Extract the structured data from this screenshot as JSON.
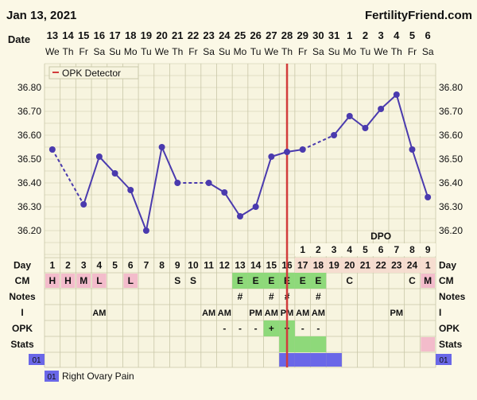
{
  "header": {
    "date": "Jan 13, 2021",
    "brand": "FertilityFriend.com"
  },
  "detector_label": "OPK Detector",
  "row_labels": {
    "date": "Date",
    "day": "Day",
    "cm": "CM",
    "notes": "Notes",
    "i": "I",
    "opk": "OPK",
    "stats": "Stats"
  },
  "dpo_label": "DPO",
  "legend": {
    "code": "01",
    "label": "Right Ovary Pain"
  },
  "colors": {
    "background": "#fbf8e6",
    "grid": "#c9c7a8",
    "line": "#4a3aae",
    "ovulation_line": "#d23c3c",
    "cm_pink": "#f3bccb",
    "cm_green": "#8ed97a",
    "opk_green": "#8ed97a",
    "pain_blue": "#6a67e8",
    "dpo_row": "#f6ddd0"
  },
  "days": [
    {
      "date": "13",
      "dow": "We",
      "cd": "1",
      "cm": "H",
      "cmc": "pink",
      "notes": "",
      "i": "",
      "opk": "",
      "stats": "",
      "pain": false
    },
    {
      "date": "14",
      "dow": "Th",
      "cd": "2",
      "cm": "H",
      "cmc": "pink",
      "notes": "",
      "i": "",
      "opk": "",
      "stats": "",
      "pain": false
    },
    {
      "date": "15",
      "dow": "Fr",
      "cd": "3",
      "cm": "M",
      "cmc": "pink",
      "notes": "",
      "i": "",
      "opk": "",
      "stats": "",
      "pain": false
    },
    {
      "date": "16",
      "dow": "Sa",
      "cd": "4",
      "cm": "L",
      "cmc": "pink",
      "notes": "",
      "i": "AM",
      "opk": "",
      "stats": "",
      "pain": false
    },
    {
      "date": "17",
      "dow": "Su",
      "cd": "5",
      "cm": "",
      "cmc": "",
      "notes": "",
      "i": "",
      "opk": "",
      "stats": "",
      "pain": false
    },
    {
      "date": "18",
      "dow": "Mo",
      "cd": "6",
      "cm": "L",
      "cmc": "pink",
      "notes": "",
      "i": "",
      "opk": "",
      "stats": "",
      "pain": false
    },
    {
      "date": "19",
      "dow": "Tu",
      "cd": "7",
      "cm": "",
      "cmc": "",
      "notes": "",
      "i": "",
      "opk": "",
      "stats": "",
      "pain": false
    },
    {
      "date": "20",
      "dow": "We",
      "cd": "8",
      "cm": "",
      "cmc": "",
      "notes": "",
      "i": "",
      "opk": "",
      "stats": "",
      "pain": false
    },
    {
      "date": "21",
      "dow": "Th",
      "cd": "9",
      "cm": "S",
      "cmc": "",
      "notes": "",
      "i": "",
      "opk": "",
      "stats": "",
      "pain": false
    },
    {
      "date": "22",
      "dow": "Fr",
      "cd": "10",
      "cm": "S",
      "cmc": "",
      "notes": "",
      "i": "",
      "opk": "",
      "stats": "",
      "pain": false
    },
    {
      "date": "23",
      "dow": "Sa",
      "cd": "11",
      "cm": "",
      "cmc": "",
      "notes": "",
      "i": "AM",
      "opk": "",
      "stats": "",
      "pain": false
    },
    {
      "date": "24",
      "dow": "Su",
      "cd": "12",
      "cm": "",
      "cmc": "",
      "notes": "",
      "i": "AM",
      "opk": "-",
      "stats": "",
      "pain": false
    },
    {
      "date": "25",
      "dow": "Mo",
      "cd": "13",
      "cm": "E",
      "cmc": "green",
      "notes": "#",
      "i": "",
      "opk": "-",
      "stats": "",
      "pain": false
    },
    {
      "date": "26",
      "dow": "Tu",
      "cd": "14",
      "cm": "E",
      "cmc": "green",
      "notes": "",
      "i": "PM",
      "opk": "-",
      "stats": "",
      "pain": false
    },
    {
      "date": "27",
      "dow": "We",
      "cd": "15",
      "cm": "E",
      "cmc": "green",
      "notes": "#",
      "i": "AM",
      "opk": "+",
      "stats": "",
      "pain": false
    },
    {
      "date": "28",
      "dow": "Th",
      "cd": "16",
      "cm": "E",
      "cmc": "green",
      "notes": "#",
      "i": "PM",
      "opk": "+",
      "stats": "green",
      "pain": true
    },
    {
      "date": "29",
      "dow": "Fr",
      "cd": "17",
      "cm": "E",
      "cmc": "green",
      "notes": "",
      "i": "AM",
      "opk": "-",
      "stats": "green",
      "pain": true
    },
    {
      "date": "30",
      "dow": "Sa",
      "cd": "18",
      "cm": "E",
      "cmc": "green",
      "notes": "#",
      "i": "AM",
      "opk": "-",
      "stats": "green",
      "pain": true
    },
    {
      "date": "31",
      "dow": "Su",
      "cd": "19",
      "cm": "",
      "cmc": "",
      "notes": "",
      "i": "",
      "opk": "",
      "stats": "",
      "pain": true
    },
    {
      "date": "1",
      "dow": "Mo",
      "cd": "20",
      "cm": "C",
      "cmc": "",
      "notes": "",
      "i": "",
      "opk": "",
      "stats": "",
      "pain": false
    },
    {
      "date": "2",
      "dow": "Tu",
      "cd": "21",
      "cm": "",
      "cmc": "",
      "notes": "",
      "i": "",
      "opk": "",
      "stats": "",
      "pain": false
    },
    {
      "date": "3",
      "dow": "We",
      "cd": "22",
      "cm": "",
      "cmc": "",
      "notes": "",
      "i": "",
      "opk": "",
      "stats": "",
      "pain": false
    },
    {
      "date": "4",
      "dow": "Th",
      "cd": "23",
      "cm": "",
      "cmc": "",
      "notes": "",
      "i": "PM",
      "opk": "",
      "stats": "",
      "pain": false
    },
    {
      "date": "5",
      "dow": "Fr",
      "cd": "24",
      "cm": "C",
      "cmc": "",
      "notes": "",
      "i": "",
      "opk": "",
      "stats": "",
      "pain": false
    },
    {
      "date": "6",
      "dow": "Sa",
      "cd": "1",
      "cm": "M",
      "cmc": "pink",
      "notes": "",
      "i": "",
      "opk": "",
      "stats": "pink",
      "pain": false
    }
  ],
  "chart_data": {
    "type": "line",
    "title": "",
    "xlabel": "Date",
    "ylabel": "",
    "ylim": [
      36.1,
      36.9
    ],
    "yticks": [
      "36.20",
      "36.30",
      "36.40",
      "36.50",
      "36.60",
      "36.70",
      "36.80"
    ],
    "series": [
      {
        "values": [
          36.54,
          null,
          36.31,
          36.51,
          36.44,
          36.37,
          36.2,
          36.55,
          36.4,
          null,
          36.4,
          36.36,
          36.26,
          36.3,
          36.51,
          36.53,
          36.54,
          null,
          36.6,
          36.68,
          36.63,
          36.71,
          36.77,
          36.54,
          36.34
        ]
      }
    ],
    "ovulation_day_index": 15,
    "dpo": [
      "1",
      "2",
      "3",
      "4",
      "5",
      "6",
      "7",
      "8",
      "9"
    ],
    "dpo_start_index": 16,
    "grid": true
  }
}
